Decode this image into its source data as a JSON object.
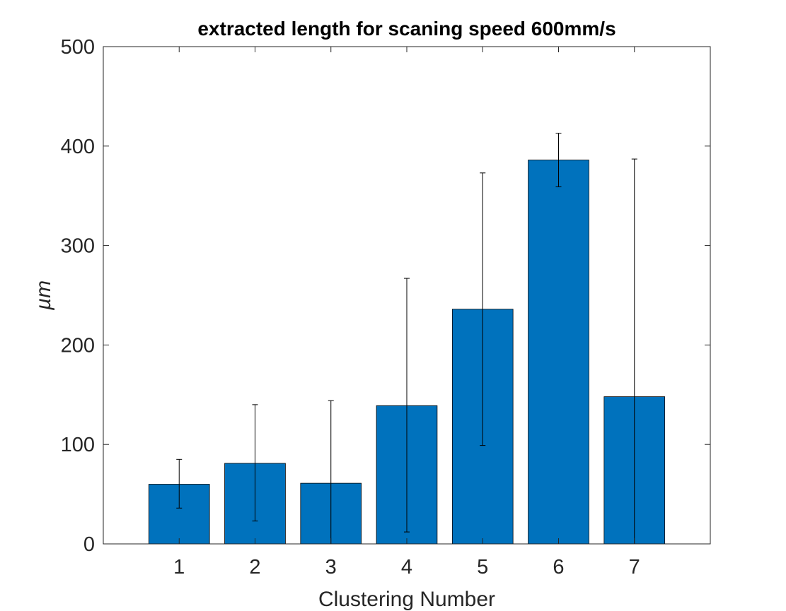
{
  "chart_data": {
    "type": "bar",
    "title": "extracted length for scaning speed 600mm/s",
    "xlabel": "Clustering Number",
    "ylabel": "µm",
    "categories": [
      "1",
      "2",
      "3",
      "4",
      "5",
      "6",
      "7"
    ],
    "values": [
      60,
      81,
      61,
      139,
      236,
      386,
      148
    ],
    "error_low": [
      36,
      23,
      0,
      12,
      99,
      359,
      0
    ],
    "error_high": [
      85,
      140,
      144,
      267,
      373,
      413,
      387
    ],
    "ylim": [
      0,
      500
    ],
    "xlim": [
      -0.5,
      7.5
    ],
    "yticks": [
      "0",
      "100",
      "200",
      "300",
      "400",
      "500"
    ],
    "grid": false,
    "legend": "none",
    "bar_color": "#0072bd",
    "edge_color": "#000000"
  }
}
